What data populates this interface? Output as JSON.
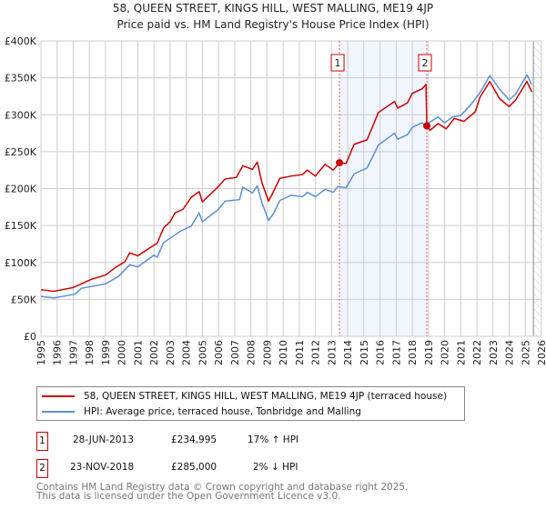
{
  "chart_data": {
    "type": "line",
    "title": "58, QUEEN STREET, KINGS HILL, WEST MALLING, ME19 4JP",
    "subtitle": "Price paid vs. HM Land Registry's House Price Index (HPI)",
    "xlim": [
      1995,
      2026
    ],
    "ylim": [
      0,
      400000
    ],
    "x_ticks": [
      "1995",
      "1996",
      "1997",
      "1998",
      "1999",
      "2000",
      "2001",
      "2002",
      "2003",
      "2004",
      "2005",
      "2006",
      "2007",
      "2008",
      "2009",
      "2010",
      "2011",
      "2012",
      "2013",
      "2014",
      "2015",
      "2016",
      "2017",
      "2018",
      "2019",
      "2020",
      "2021",
      "2022",
      "2023",
      "2024",
      "2025",
      "2026"
    ],
    "y_ticks": [
      {
        "v": 0,
        "label": "£0"
      },
      {
        "v": 50000,
        "label": "£50K"
      },
      {
        "v": 100000,
        "label": "£100K"
      },
      {
        "v": 150000,
        "label": "£150K"
      },
      {
        "v": 200000,
        "label": "£200K"
      },
      {
        "v": 250000,
        "label": "£250K"
      },
      {
        "v": 300000,
        "label": "£300K"
      },
      {
        "v": 350000,
        "label": "£350K"
      },
      {
        "v": 400000,
        "label": "£400K"
      }
    ],
    "grid": true,
    "shaded_range": [
      2013.49,
      2018.9
    ],
    "forecast_from": 2025.5,
    "series": [
      {
        "name": "58, QUEEN STREET, KINGS HILL, WEST MALLING, ME19 4JP (terraced house)",
        "color": "#cc0000",
        "points": [
          [
            1995,
            63
          ],
          [
            1995.8,
            61
          ],
          [
            1997,
            66
          ],
          [
            1997.5,
            71
          ],
          [
            1998.1,
            77
          ],
          [
            1999,
            83
          ],
          [
            1999.6,
            93
          ],
          [
            2000.2,
            101
          ],
          [
            2000.5,
            113
          ],
          [
            2001,
            109
          ],
          [
            2001.9,
            122
          ],
          [
            2002.2,
            126
          ],
          [
            2002.6,
            147
          ],
          [
            2003,
            155
          ],
          [
            2003.3,
            167
          ],
          [
            2003.8,
            172
          ],
          [
            2004.3,
            188
          ],
          [
            2004.8,
            196
          ],
          [
            2005,
            182
          ],
          [
            2006,
            203
          ],
          [
            2006.4,
            213
          ],
          [
            2007.1,
            215
          ],
          [
            2007.5,
            231
          ],
          [
            2008.1,
            226
          ],
          [
            2008.4,
            236
          ],
          [
            2008.7,
            207
          ],
          [
            2009.1,
            183
          ],
          [
            2009.4,
            196
          ],
          [
            2009.8,
            214
          ],
          [
            2010.5,
            217
          ],
          [
            2011.2,
            219
          ],
          [
            2011.5,
            225
          ],
          [
            2012,
            217
          ],
          [
            2012.6,
            233
          ],
          [
            2013.1,
            225
          ],
          [
            2013.49,
            235
          ],
          [
            2013.9,
            234
          ],
          [
            2014.4,
            260
          ],
          [
            2015.2,
            266
          ],
          [
            2015.9,
            303
          ],
          [
            2016.9,
            318
          ],
          [
            2017.1,
            309
          ],
          [
            2017.7,
            316
          ],
          [
            2018,
            329
          ],
          [
            2018.6,
            335
          ],
          [
            2018.85,
            341
          ],
          [
            2018.9,
            285
          ],
          [
            2019.1,
            279
          ],
          [
            2019.6,
            288
          ],
          [
            2020.1,
            281
          ],
          [
            2020.6,
            295
          ],
          [
            2021.2,
            291
          ],
          [
            2021.9,
            304
          ],
          [
            2022.2,
            324
          ],
          [
            2022.8,
            345
          ],
          [
            2023.4,
            322
          ],
          [
            2024,
            311
          ],
          [
            2024.4,
            320
          ],
          [
            2025.1,
            345
          ],
          [
            2025.4,
            331
          ]
        ]
      },
      {
        "name": "HPI: Average price, terraced house, Tonbridge and Malling",
        "color": "#5b8fd4",
        "points": [
          [
            1995,
            54
          ],
          [
            1995.8,
            52
          ],
          [
            1997.1,
            57
          ],
          [
            1997.5,
            65
          ],
          [
            1999,
            71
          ],
          [
            1999.8,
            81
          ],
          [
            2000.5,
            97
          ],
          [
            2001,
            94
          ],
          [
            2002,
            110
          ],
          [
            2002.2,
            107
          ],
          [
            2002.6,
            127
          ],
          [
            2003.7,
            143
          ],
          [
            2004.3,
            149
          ],
          [
            2004.8,
            167
          ],
          [
            2005,
            155
          ],
          [
            2006,
            172
          ],
          [
            2006.4,
            183
          ],
          [
            2007.3,
            185
          ],
          [
            2007.5,
            202
          ],
          [
            2008.1,
            194
          ],
          [
            2008.4,
            204
          ],
          [
            2008.7,
            180
          ],
          [
            2009.1,
            157
          ],
          [
            2009.4,
            166
          ],
          [
            2009.8,
            184
          ],
          [
            2010.5,
            191
          ],
          [
            2011.2,
            189
          ],
          [
            2011.5,
            195
          ],
          [
            2012,
            189
          ],
          [
            2012.6,
            199
          ],
          [
            2013.1,
            195
          ],
          [
            2013.4,
            203
          ],
          [
            2013.9,
            201
          ],
          [
            2014.4,
            220
          ],
          [
            2015.2,
            228
          ],
          [
            2015.9,
            259
          ],
          [
            2016.9,
            275
          ],
          [
            2017.1,
            267
          ],
          [
            2017.7,
            273
          ],
          [
            2018,
            283
          ],
          [
            2018.6,
            289
          ],
          [
            2018.8,
            286
          ],
          [
            2019.6,
            297
          ],
          [
            2020,
            289
          ],
          [
            2020.5,
            297
          ],
          [
            2021,
            299
          ],
          [
            2021.6,
            313
          ],
          [
            2022.2,
            330
          ],
          [
            2022.8,
            353
          ],
          [
            2023.4,
            335
          ],
          [
            2024,
            320
          ],
          [
            2024.4,
            328
          ],
          [
            2025.1,
            354
          ],
          [
            2025.4,
            341
          ]
        ]
      }
    ],
    "markers": [
      {
        "label": "1",
        "x": 2013.49,
        "y": 234995
      },
      {
        "label": "2",
        "x": 2018.9,
        "y": 285000
      }
    ]
  },
  "legend": {
    "items": [
      {
        "label": "58, QUEEN STREET, KINGS HILL, WEST MALLING, ME19 4JP (terraced house)",
        "color": "#cc0000"
      },
      {
        "label": "HPI: Average price, terraced house, Tonbridge and Malling",
        "color": "#5b8fd4"
      }
    ]
  },
  "sales": [
    {
      "num": "1",
      "date": "28-JUN-2013",
      "price": "£234,995",
      "hpi": "17% ↑ HPI"
    },
    {
      "num": "2",
      "date": "23-NOV-2018",
      "price": "£285,000",
      "hpi": "2% ↓ HPI"
    }
  ],
  "footer": {
    "line1": "Contains HM Land Registry data © Crown copyright and database right 2025.",
    "line2": "This data is licensed under the Open Government Licence v3.0."
  }
}
